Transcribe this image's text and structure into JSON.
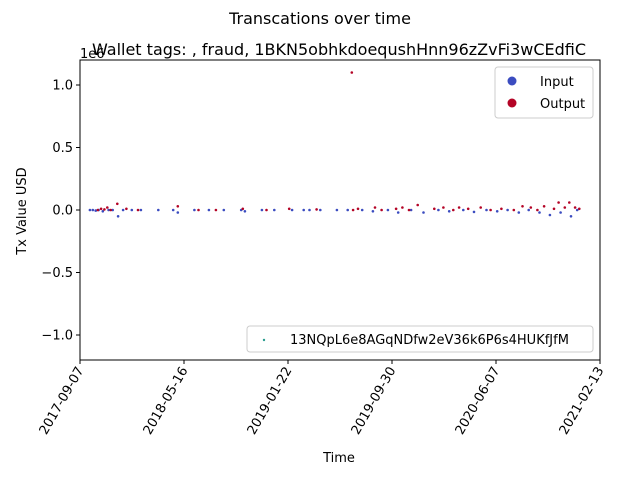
{
  "chart_data": {
    "type": "scatter",
    "suptitle": "Transcations over time",
    "title": "Wallet tags: , fraud, 1BKN5obhkdoequshHnn96zZvFi3wCEdfiC",
    "xlabel": "Time",
    "ylabel": "Tx Value USD",
    "y_offset_label": "1e6",
    "ylim": [
      -1.2,
      1.2
    ],
    "y_ticks": [
      -1.0,
      -0.5,
      0.0,
      0.5,
      1.0
    ],
    "y_tick_labels": [
      "−1.0",
      "−0.5",
      "0.0",
      "0.5",
      "1.0"
    ],
    "xlim": [
      "2017-09-07",
      "2021-02-13"
    ],
    "x_ticks": [
      "2017-09-07",
      "2018-05-16",
      "2019-01-22",
      "2019-09-30",
      "2020-06-07",
      "2021-02-13"
    ],
    "grid": false,
    "legends": [
      {
        "placement": "top-right",
        "entries": [
          {
            "label": "Input",
            "color": "#3b4cc0"
          },
          {
            "label": "Output",
            "color": "#b40426"
          }
        ]
      },
      {
        "placement": "bottom-right",
        "entries": [
          {
            "label": "13NQpL6e8AGqNDfw2eV36k6P6s4HUKfJfM",
            "color": "#2a9d8f"
          }
        ]
      }
    ],
    "series": [
      {
        "name": "Input",
        "color": "#3b4cc0",
        "points": [
          [
            "2017-10-01",
            0.0
          ],
          [
            "2017-10-08",
            0.0
          ],
          [
            "2017-10-15",
            -0.005
          ],
          [
            "2017-10-22",
            0.0
          ],
          [
            "2017-11-01",
            -0.01
          ],
          [
            "2017-11-15",
            0.0
          ],
          [
            "2017-11-25",
            0.0
          ],
          [
            "2017-12-08",
            -0.05
          ],
          [
            "2017-12-20",
            0.0
          ],
          [
            "2018-01-10",
            0.0
          ],
          [
            "2018-02-01",
            0.0
          ],
          [
            "2018-03-15",
            0.0
          ],
          [
            "2018-04-20",
            0.0
          ],
          [
            "2018-05-01",
            -0.02
          ],
          [
            "2018-06-10",
            0.0
          ],
          [
            "2018-07-15",
            0.0
          ],
          [
            "2018-08-20",
            0.0
          ],
          [
            "2018-10-01",
            0.0
          ],
          [
            "2018-10-10",
            -0.01
          ],
          [
            "2018-11-20",
            0.0
          ],
          [
            "2018-12-20",
            0.0
          ],
          [
            "2019-02-01",
            0.0
          ],
          [
            "2019-03-01",
            0.0
          ],
          [
            "2019-03-15",
            0.0
          ],
          [
            "2019-04-10",
            0.0
          ],
          [
            "2019-05-20",
            0.0
          ],
          [
            "2019-06-15",
            0.0
          ],
          [
            "2019-07-20",
            0.0
          ],
          [
            "2019-08-15",
            -0.01
          ],
          [
            "2019-09-20",
            0.0
          ],
          [
            "2019-10-15",
            -0.02
          ],
          [
            "2019-11-15",
            0.0
          ],
          [
            "2019-12-15",
            -0.02
          ],
          [
            "2020-01-20",
            0.0
          ],
          [
            "2020-02-15",
            -0.01
          ],
          [
            "2020-03-20",
            0.0
          ],
          [
            "2020-04-15",
            -0.015
          ],
          [
            "2020-05-15",
            0.0
          ],
          [
            "2020-06-10",
            -0.01
          ],
          [
            "2020-07-05",
            0.0
          ],
          [
            "2020-08-01",
            -0.02
          ],
          [
            "2020-08-25",
            0.0
          ],
          [
            "2020-09-20",
            -0.02
          ],
          [
            "2020-10-15",
            -0.04
          ],
          [
            "2020-11-10",
            -0.02
          ],
          [
            "2020-12-05",
            -0.05
          ],
          [
            "2020-12-20",
            0.0
          ]
        ]
      },
      {
        "name": "Output",
        "color": "#b40426",
        "points": [
          [
            "2017-10-20",
            0.0
          ],
          [
            "2017-10-28",
            0.01
          ],
          [
            "2017-11-05",
            0.005
          ],
          [
            "2017-11-12",
            0.02
          ],
          [
            "2017-11-20",
            0.0
          ],
          [
            "2017-12-06",
            0.05
          ],
          [
            "2017-12-28",
            0.01
          ],
          [
            "2018-01-25",
            0.0
          ],
          [
            "2018-05-01",
            0.03
          ],
          [
            "2018-06-20",
            0.0
          ],
          [
            "2018-08-01",
            0.0
          ],
          [
            "2018-10-05",
            0.01
          ],
          [
            "2018-12-01",
            0.0
          ],
          [
            "2019-01-25",
            0.01
          ],
          [
            "2019-04-01",
            0.005
          ],
          [
            "2019-06-25",
            1.1
          ],
          [
            "2019-06-28",
            0.0
          ],
          [
            "2019-07-10",
            0.01
          ],
          [
            "2019-08-20",
            0.02
          ],
          [
            "2019-09-05",
            0.0
          ],
          [
            "2019-10-10",
            0.01
          ],
          [
            "2019-10-25",
            0.02
          ],
          [
            "2019-11-10",
            0.0
          ],
          [
            "2019-12-01",
            0.04
          ],
          [
            "2020-01-10",
            0.01
          ],
          [
            "2020-02-01",
            0.02
          ],
          [
            "2020-02-25",
            0.0
          ],
          [
            "2020-03-10",
            0.02
          ],
          [
            "2020-04-01",
            0.01
          ],
          [
            "2020-05-01",
            0.02
          ],
          [
            "2020-05-25",
            0.0
          ],
          [
            "2020-06-20",
            0.01
          ],
          [
            "2020-07-20",
            0.0
          ],
          [
            "2020-08-10",
            0.03
          ],
          [
            "2020-08-30",
            0.02
          ],
          [
            "2020-09-15",
            0.0
          ],
          [
            "2020-10-01",
            0.03
          ],
          [
            "2020-10-25",
            0.01
          ],
          [
            "2020-11-05",
            0.06
          ],
          [
            "2020-11-20",
            0.02
          ],
          [
            "2020-12-01",
            0.06
          ],
          [
            "2020-12-15",
            0.02
          ],
          [
            "2020-12-25",
            0.01
          ]
        ]
      }
    ]
  }
}
